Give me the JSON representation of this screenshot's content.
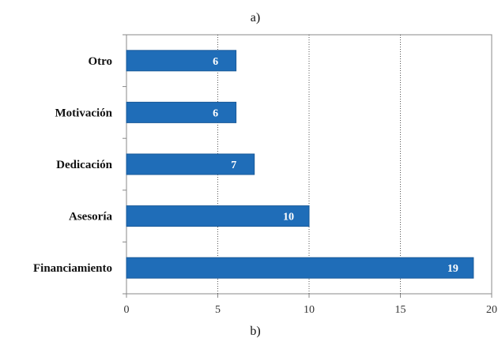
{
  "caption_top": "a)",
  "caption_bottom": "b)",
  "colors": {
    "bar": "#1f6db8",
    "bar_edge": "#1a5a99",
    "grid": "#555555",
    "axis": "#888888"
  },
  "chart_data": {
    "type": "bar",
    "orientation": "horizontal",
    "categories": [
      "Otro",
      "Motivación",
      "Dedicación",
      "Asesoría",
      "Financiamiento"
    ],
    "values": [
      6,
      6,
      7,
      10,
      19
    ],
    "data_labels": [
      "6",
      "6",
      "7",
      "10",
      "19"
    ],
    "xlim": [
      0,
      20
    ],
    "xticks": [
      0,
      5,
      10,
      15,
      20
    ],
    "xtick_labels": [
      "0",
      "5",
      "10",
      "15",
      "20"
    ],
    "grid": "vertical-dotted",
    "title": "",
    "xlabel": "",
    "ylabel": ""
  }
}
